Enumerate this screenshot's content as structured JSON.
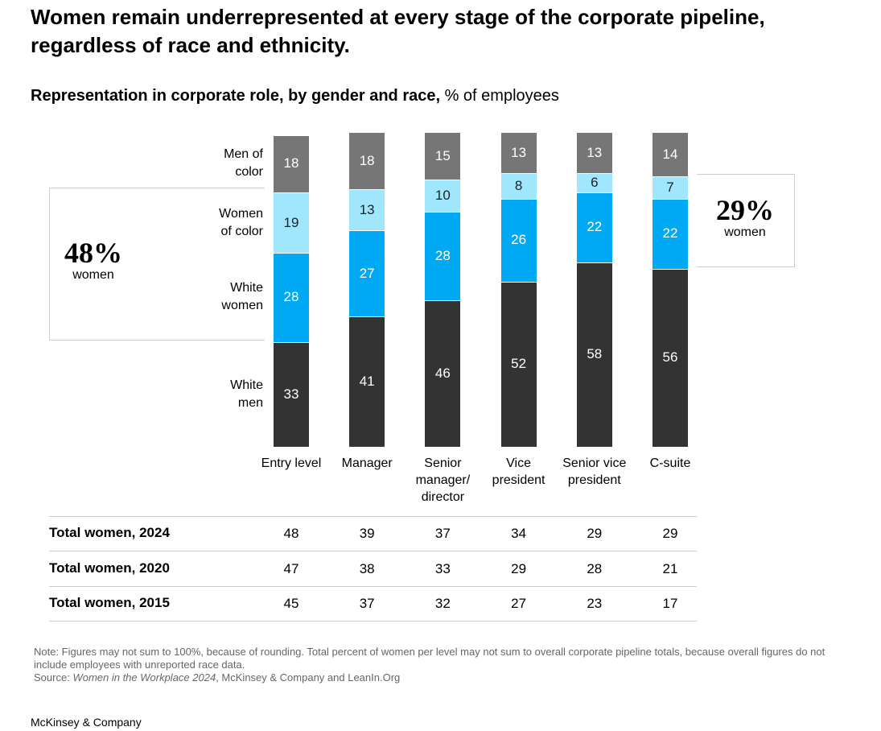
{
  "chart_data": {
    "type": "stacked_bar",
    "title": "Women remain underrepresented at every stage of the corporate pipeline, regardless of race and ethnicity.",
    "subtitle": "Representation in corporate role, by gender and race,",
    "unit": "% of employees",
    "categories": [
      "Entry level",
      "Manager",
      "Senior manager/ director",
      "Vice president",
      "Senior vice president",
      "C-suite"
    ],
    "series": [
      {
        "name": "White men",
        "color": "#333333",
        "values": [
          33,
          41,
          46,
          52,
          58,
          56
        ]
      },
      {
        "name": "White women",
        "color": "#00a9f4",
        "values": [
          28,
          27,
          28,
          26,
          22,
          22
        ]
      },
      {
        "name": "Women of color",
        "color": "#a0e6fc",
        "values": [
          19,
          13,
          10,
          8,
          6,
          7
        ]
      },
      {
        "name": "Men of color",
        "color": "#767676",
        "values": [
          18,
          18,
          15,
          13,
          13,
          14
        ]
      }
    ],
    "ylim": [
      0,
      100
    ],
    "annotations": [
      {
        "text": "48%",
        "caption": "women"
      },
      {
        "text": "29%",
        "caption": "women"
      }
    ],
    "table": {
      "rows": [
        {
          "label": "Total women, 2024",
          "values": [
            48,
            39,
            37,
            34,
            29,
            29
          ]
        },
        {
          "label": "Total women, 2020",
          "values": [
            47,
            38,
            33,
            29,
            28,
            21
          ]
        },
        {
          "label": "Total women, 2015",
          "values": [
            45,
            37,
            32,
            27,
            23,
            17
          ]
        }
      ]
    },
    "note": "Note: Figures may not sum to 100%, because of rounding. Total percent of women per level may not sum to overall corporate pipeline totals, because overall figures do not include employees with unreported race data.",
    "source": [
      "Source:",
      "Women in the Workplace 2024",
      ", McKinsey & Company and LeanIn.Org"
    ],
    "footer": "McKinsey & Company"
  }
}
